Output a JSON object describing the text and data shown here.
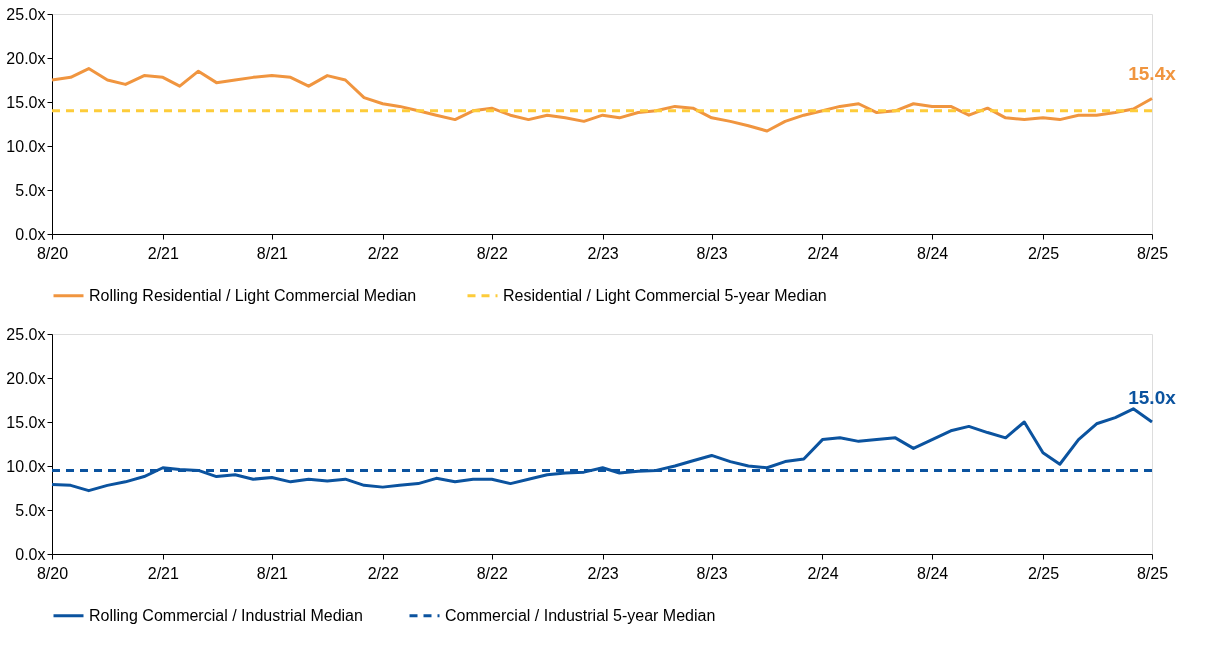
{
  "chart_data": [
    {
      "type": "line",
      "x": [
        "2020-08",
        "2020-09",
        "2020-10",
        "2020-11",
        "2020-12",
        "2021-01",
        "2021-02",
        "2021-03",
        "2021-04",
        "2021-05",
        "2021-06",
        "2021-07",
        "2021-08",
        "2021-09",
        "2021-10",
        "2021-11",
        "2021-12",
        "2022-01",
        "2022-02",
        "2022-03",
        "2022-04",
        "2022-05",
        "2022-06",
        "2022-07",
        "2022-08",
        "2022-09",
        "2022-10",
        "2022-11",
        "2022-12",
        "2023-01",
        "2023-02",
        "2023-03",
        "2023-04",
        "2023-05",
        "2023-06",
        "2023-07",
        "2023-08",
        "2023-09",
        "2023-10",
        "2023-11",
        "2023-12",
        "2024-01",
        "2024-02",
        "2024-03",
        "2024-04",
        "2024-05",
        "2024-06",
        "2024-07",
        "2024-08",
        "2024-09",
        "2024-10",
        "2024-11",
        "2024-12",
        "2025-01",
        "2025-02",
        "2025-03",
        "2025-04",
        "2025-05",
        "2025-06",
        "2025-07",
        "2025-08"
      ],
      "series": [
        {
          "name": "Rolling Residential  / Light Commercial Median",
          "color": "#f0953f",
          "line_style": "solid",
          "values": [
            17.5,
            17.8,
            18.8,
            17.5,
            17.0,
            18.0,
            17.8,
            16.8,
            18.5,
            17.2,
            17.5,
            17.8,
            18.0,
            17.8,
            16.8,
            18.0,
            17.5,
            15.5,
            14.8,
            14.5,
            14.0,
            13.5,
            13.0,
            14.0,
            14.3,
            13.5,
            13.0,
            13.5,
            13.2,
            12.8,
            13.5,
            13.2,
            13.8,
            14.0,
            14.5,
            14.3,
            13.2,
            12.8,
            12.3,
            11.7,
            12.8,
            13.5,
            14.0,
            14.5,
            14.8,
            13.8,
            14.0,
            14.8,
            14.5,
            14.5,
            13.5,
            14.3,
            13.2,
            13.0,
            13.2,
            13.0,
            13.5,
            13.5,
            13.8,
            14.2,
            15.4
          ]
        },
        {
          "name": "Residential  / Light Commercial 5-year Median",
          "color": "#fdcc3a",
          "line_style": "dashed",
          "x": [
            "2020-08",
            "2025-08"
          ],
          "values": [
            14.0,
            14.0
          ]
        }
      ],
      "annotations": [
        {
          "text": "15.4x",
          "x": "2025-08",
          "y": 15.4
        }
      ],
      "xlim": [
        "2020-08",
        "2025-08"
      ],
      "xticks": [
        {
          "value": "2020-08",
          "label": "8/20"
        },
        {
          "value": "2021-02",
          "label": "2/21"
        },
        {
          "value": "2021-08",
          "label": "8/21"
        },
        {
          "value": "2022-02",
          "label": "2/22"
        },
        {
          "value": "2022-08",
          "label": "8/22"
        },
        {
          "value": "2023-02",
          "label": "2/23"
        },
        {
          "value": "2023-08",
          "label": "8/23"
        },
        {
          "value": "2024-02",
          "label": "2/24"
        },
        {
          "value": "2024-08",
          "label": "8/24"
        },
        {
          "value": "2025-02",
          "label": "2/25"
        },
        {
          "value": "2025-08",
          "label": "8/25"
        }
      ],
      "ylim": [
        0,
        25
      ],
      "yticks": [
        {
          "value": 0,
          "label": "0.0x"
        },
        {
          "value": 5,
          "label": "5.0x"
        },
        {
          "value": 10,
          "label": "10.0x"
        },
        {
          "value": 15,
          "label": "15.0x"
        },
        {
          "value": 20,
          "label": "20.0x"
        },
        {
          "value": 25,
          "label": "25.0x"
        }
      ],
      "grid": false,
      "legend": "bottom"
    },
    {
      "type": "line",
      "x": [
        "2020-08",
        "2020-09",
        "2020-10",
        "2020-11",
        "2020-12",
        "2021-01",
        "2021-02",
        "2021-03",
        "2021-04",
        "2021-05",
        "2021-06",
        "2021-07",
        "2021-08",
        "2021-09",
        "2021-10",
        "2021-11",
        "2021-12",
        "2022-01",
        "2022-02",
        "2022-03",
        "2022-04",
        "2022-05",
        "2022-06",
        "2022-07",
        "2022-08",
        "2022-09",
        "2022-10",
        "2022-11",
        "2022-12",
        "2023-01",
        "2023-02",
        "2023-03",
        "2023-04",
        "2023-05",
        "2023-06",
        "2023-07",
        "2023-08",
        "2023-09",
        "2023-10",
        "2023-11",
        "2023-12",
        "2024-01",
        "2024-02",
        "2024-03",
        "2024-04",
        "2024-05",
        "2024-06",
        "2024-07",
        "2024-08",
        "2024-09",
        "2024-10",
        "2024-11",
        "2024-12",
        "2025-01",
        "2025-02",
        "2025-03",
        "2025-04",
        "2025-05",
        "2025-06",
        "2025-07",
        "2025-08"
      ],
      "series": [
        {
          "name": "Rolling Commercial / Industrial Median",
          "color": "#0b539f",
          "line_style": "solid",
          "values": [
            7.9,
            7.8,
            7.2,
            7.8,
            8.2,
            8.8,
            9.8,
            9.6,
            9.5,
            8.8,
            9.0,
            8.5,
            8.7,
            8.2,
            8.5,
            8.3,
            8.5,
            7.8,
            7.6,
            7.8,
            8.0,
            8.6,
            8.2,
            8.5,
            8.5,
            8.0,
            8.5,
            9.0,
            9.2,
            9.3,
            9.8,
            9.2,
            9.4,
            9.5,
            10.0,
            10.6,
            11.2,
            10.5,
            10.0,
            9.8,
            10.5,
            10.8,
            13.0,
            13.2,
            12.8,
            13.0,
            13.2,
            12.0,
            13.0,
            14.0,
            14.5,
            13.8,
            13.2,
            15.0,
            11.5,
            10.2,
            13.0,
            14.8,
            15.5,
            16.5,
            15.0
          ]
        },
        {
          "name": "Commercial / Industrial 5-year Median",
          "color": "#0b539f",
          "line_style": "dashed",
          "x": [
            "2020-08",
            "2025-08"
          ],
          "values": [
            9.5,
            9.5
          ]
        }
      ],
      "annotations": [
        {
          "text": "15.0x",
          "x": "2025-08",
          "y": 15.0
        }
      ],
      "xlim": [
        "2020-08",
        "2025-08"
      ],
      "xticks": [
        {
          "value": "2020-08",
          "label": "8/20"
        },
        {
          "value": "2021-02",
          "label": "2/21"
        },
        {
          "value": "2021-08",
          "label": "8/21"
        },
        {
          "value": "2022-02",
          "label": "2/22"
        },
        {
          "value": "2022-08",
          "label": "8/22"
        },
        {
          "value": "2023-02",
          "label": "2/23"
        },
        {
          "value": "2023-08",
          "label": "8/23"
        },
        {
          "value": "2024-02",
          "label": "2/24"
        },
        {
          "value": "2024-08",
          "label": "8/24"
        },
        {
          "value": "2025-02",
          "label": "2/25"
        },
        {
          "value": "2025-08",
          "label": "8/25"
        }
      ],
      "ylim": [
        0,
        25
      ],
      "yticks": [
        {
          "value": 0,
          "label": "0.0x"
        },
        {
          "value": 5,
          "label": "5.0x"
        },
        {
          "value": 10,
          "label": "10.0x"
        },
        {
          "value": 15,
          "label": "15.0x"
        },
        {
          "value": 20,
          "label": "20.0x"
        },
        {
          "value": 25,
          "label": "25.0x"
        }
      ],
      "grid": false,
      "legend": "bottom"
    }
  ]
}
